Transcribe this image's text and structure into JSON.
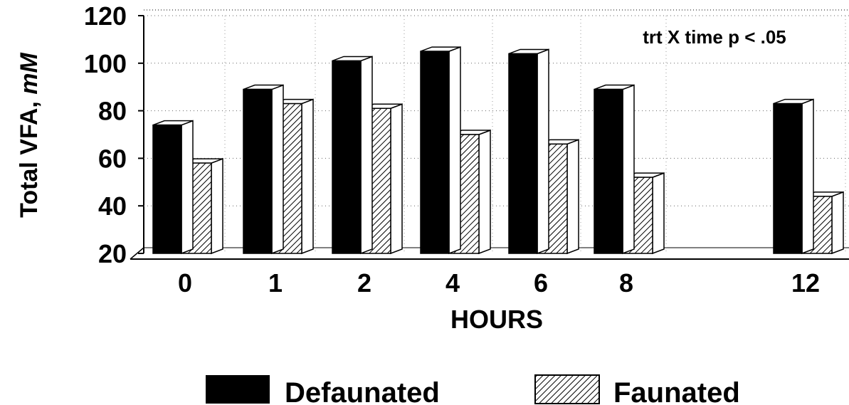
{
  "chart_data": {
    "type": "bar",
    "categories": [
      "0",
      "1",
      "2",
      "4",
      "6",
      "8",
      "12"
    ],
    "series": [
      {
        "name": "Defaunated",
        "values": [
          74,
          89,
          101,
          105,
          104,
          89,
          83
        ]
      },
      {
        "name": "Faunated",
        "values": [
          58,
          83,
          81,
          70,
          66,
          52,
          44
        ]
      }
    ],
    "xlabel": "HOURS",
    "ylabel_main": "Total VFA,",
    "ylabel_unit": "mM",
    "ylim": [
      20,
      120
    ],
    "yticks": [
      "20",
      "40",
      "60",
      "80",
      "100",
      "120"
    ],
    "annotation": "trt X time p < .05",
    "legend_position": "bottom",
    "grid": true,
    "colors": {
      "Defaunated": "#000000",
      "Faunated": "hatched"
    }
  }
}
